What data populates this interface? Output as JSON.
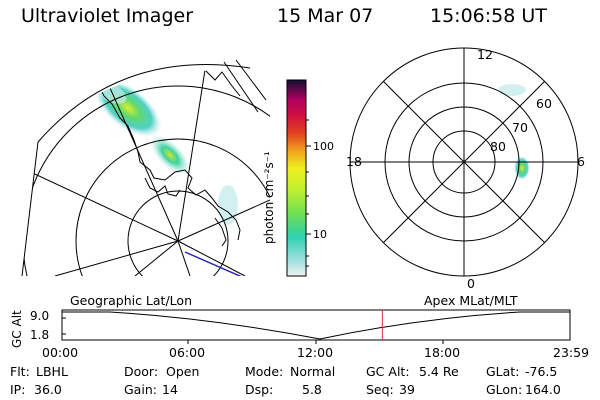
{
  "header": {
    "title": "Ultraviolet Imager",
    "date": "15 Mar 07",
    "time": "15:06:58 UT"
  },
  "colorbar": {
    "unit_label": "photon cm⁻²s⁻¹",
    "ticks": [
      "100",
      "10"
    ]
  },
  "polar_plot": {
    "hour_labels": [
      "12",
      "18",
      "6",
      "0"
    ],
    "lat_labels": [
      "60",
      "70",
      "80"
    ]
  },
  "left_map": {
    "label": "Geographic Lat/Lon"
  },
  "right_map": {
    "label": "Apex MLat/MLT"
  },
  "altitude_strip": {
    "ylabel": "GC Alt",
    "y_ticks": [
      "9.0",
      "1.8"
    ],
    "time_ticks": [
      "00:00",
      "06:00",
      "12:00",
      "18:00",
      "23:59"
    ],
    "current_time_fraction": 0.6306,
    "marker_color": "#e03030"
  },
  "footer": {
    "row1": [
      {
        "label": "Flt:",
        "value": "LBHL"
      },
      {
        "label": "Door:",
        "value": "Open"
      },
      {
        "label": "Mode:",
        "value": "Normal"
      },
      {
        "label": "GC Alt:",
        "value": "5.4 Re"
      },
      {
        "label": "GLat:",
        "value": "-76.5"
      }
    ],
    "row2": [
      {
        "label": "IP:",
        "value": "36.0"
      },
      {
        "label": "Gain:",
        "value": "14"
      },
      {
        "label": "Dsp:",
        "value": "5.8"
      },
      {
        "label": "Seq:",
        "value": "39"
      },
      {
        "label": "GLon:",
        "value": "164.0"
      }
    ]
  },
  "colors": {
    "colorbar_stops": [
      "#f0f0f0",
      "#a0e0e0",
      "#30d0b0",
      "#70e050",
      "#c0f030",
      "#f0f020",
      "#f0a020",
      "#e04020",
      "#d01040",
      "#b00060",
      "#500050",
      "#101030"
    ]
  }
}
